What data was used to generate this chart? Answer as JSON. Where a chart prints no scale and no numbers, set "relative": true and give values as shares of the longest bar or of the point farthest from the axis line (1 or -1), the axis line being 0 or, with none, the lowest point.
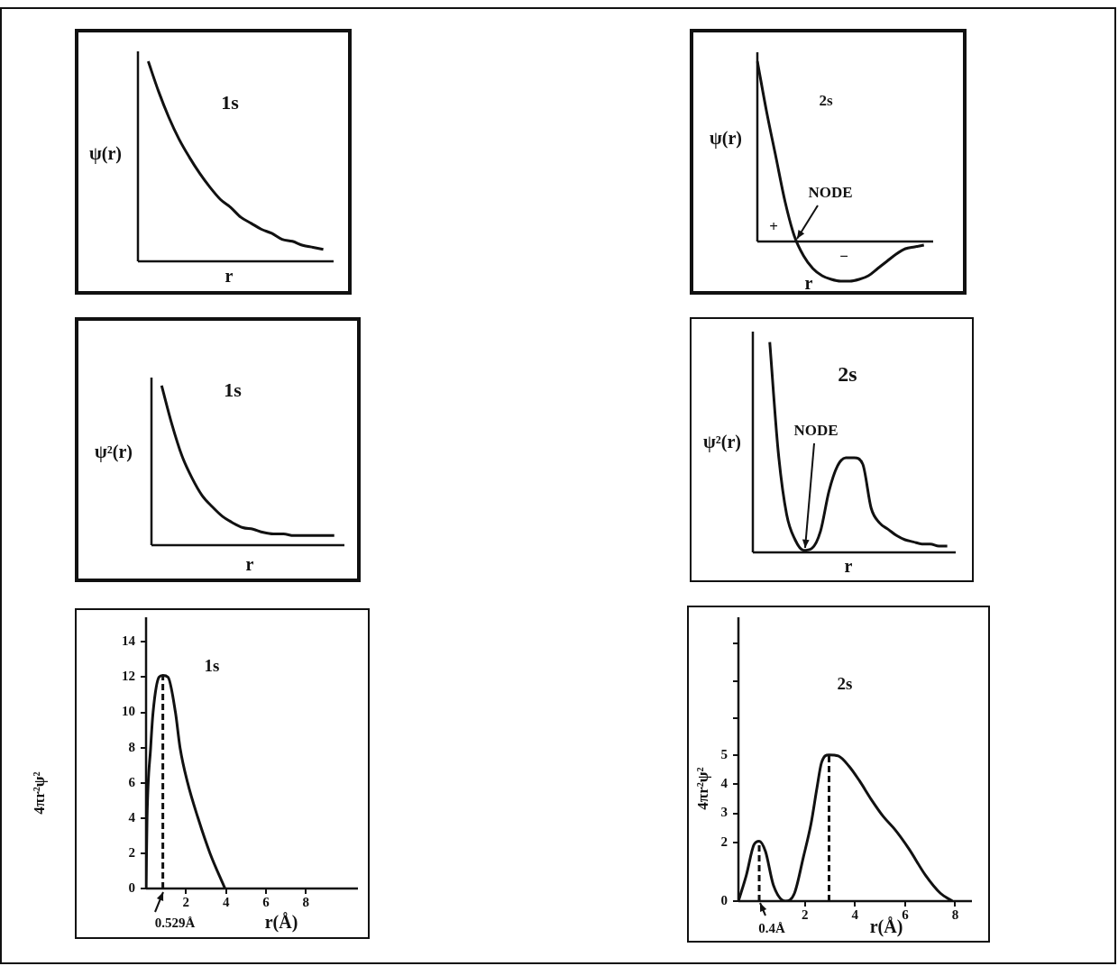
{
  "chart_data": [
    {
      "type": "line",
      "title": "1s",
      "xlabel": "r",
      "ylabel": "ψ(r)",
      "relative": true,
      "categories": [
        null,
        null,
        null,
        null,
        null,
        null,
        null,
        null,
        null,
        null,
        null,
        null,
        null,
        null,
        null,
        null,
        null,
        null,
        null,
        null
      ],
      "series": [
        {
          "color": "#111111",
          "values": [
            null,
            1.0,
            0.85,
            0.72,
            0.61,
            0.52,
            0.44,
            0.37,
            0.31,
            0.27,
            0.22,
            0.19,
            0.16,
            0.14,
            0.11,
            0.1,
            0.08,
            0.07,
            0.06,
            null
          ]
        }
      ]
    },
    {
      "type": "line",
      "title": "2s",
      "xlabel": "r",
      "ylabel": "ψ(r)",
      "relative": true,
      "annotations": [
        "NODE",
        "+",
        "−"
      ],
      "categories": [
        null,
        null,
        null,
        null,
        null,
        null,
        null,
        null,
        null,
        null,
        null,
        null,
        null,
        null,
        null,
        null,
        null,
        null,
        null,
        null
      ],
      "series": [
        {
          "color": "#111111",
          "values": [
            1.0,
            0.72,
            0.47,
            0.22,
            0.03,
            -0.08,
            -0.15,
            -0.19,
            -0.21,
            -0.22,
            -0.22,
            -0.21,
            -0.19,
            -0.15,
            -0.11,
            -0.07,
            -0.04,
            -0.03,
            -0.02,
            null
          ]
        }
      ]
    },
    {
      "type": "line",
      "title": "1s",
      "xlabel": "r",
      "ylabel": "ψ²(r)",
      "relative": true,
      "categories": [
        null,
        null,
        null,
        null,
        null,
        null,
        null,
        null,
        null,
        null,
        null,
        null,
        null,
        null,
        null,
        null,
        null,
        null,
        null,
        null
      ],
      "series": [
        {
          "color": "#111111",
          "values": [
            null,
            1.0,
            0.76,
            0.56,
            0.42,
            0.31,
            0.24,
            0.18,
            0.14,
            0.11,
            0.1,
            0.08,
            0.07,
            0.07,
            0.06,
            0.06,
            0.06,
            0.06,
            0.06,
            null
          ]
        }
      ]
    },
    {
      "type": "line",
      "title": "2s",
      "xlabel": "r",
      "ylabel": "ψ²(r)",
      "relative": true,
      "annotations": [
        "NODE"
      ],
      "categories": [
        null,
        null,
        null,
        null,
        null,
        null,
        null,
        null,
        null,
        null,
        null,
        null,
        null,
        null,
        null,
        null,
        null,
        null,
        null,
        null,
        null,
        null,
        null,
        null,
        null
      ],
      "series": [
        {
          "color": "#111111",
          "values": [
            null,
            null,
            1.0,
            0.48,
            0.18,
            0.06,
            0.01,
            0.02,
            0.1,
            0.29,
            0.41,
            0.45,
            0.45,
            0.42,
            0.21,
            0.14,
            0.11,
            0.08,
            0.06,
            0.05,
            0.04,
            0.04,
            0.03,
            0.03,
            null
          ]
        }
      ]
    },
    {
      "type": "line",
      "title": "1s",
      "xlabel": "r(Å)",
      "ylabel": "4πr²ψ²",
      "xlim": [
        0,
        10.6
      ],
      "ylim": [
        0,
        15.4
      ],
      "xticks": [
        2,
        4,
        6,
        8
      ],
      "yticks": [
        0,
        2,
        4,
        6,
        8,
        10,
        12,
        14
      ],
      "x": [
        0,
        0.05,
        0.23,
        0.35,
        0.65,
        0.84,
        1.1,
        1.47,
        1.7,
        2.08,
        2.6,
        3.2,
        3.95
      ],
      "series": [
        {
          "color": "#111111",
          "values": [
            0,
            4,
            8,
            10,
            12,
            12.1,
            12,
            10,
            8,
            6,
            4,
            2,
            0
          ]
        }
      ],
      "ref_lines": [
        {
          "axis": "x",
          "value": 0.84,
          "label": "0.529Å",
          "color": "#111111",
          "line_style": "dashed"
        }
      ]
    },
    {
      "type": "line",
      "title": "2s",
      "xlabel": "r(Å)",
      "ylabel": "4πr²ψ²",
      "xlim": [
        -0.66,
        8.67
      ],
      "ylim": [
        0,
        9.7
      ],
      "xticks": [
        2,
        4,
        6,
        8
      ],
      "yticks": [
        0,
        2,
        3,
        4,
        5,
        {
          "value": 6.25,
          "label": null
        },
        {
          "value": 7.5,
          "label": null
        },
        {
          "value": 8.8,
          "label": null
        }
      ],
      "x": [
        -0.66,
        -0.34,
        -0.04,
        0.17,
        0.42,
        0.74,
        1.22,
        1.58,
        1.94,
        2.24,
        2.48,
        2.66,
        2.96,
        3.33,
        3.75,
        4.17,
        4.65,
        5.13,
        5.61,
        6.15,
        6.81,
        7.41,
        7.89
      ],
      "series": [
        {
          "color": "#111111",
          "values": [
            0,
            0.9,
            1.93,
            2.05,
            1.7,
            0.54,
            0,
            0.27,
            1.52,
            2.64,
            3.88,
            4.73,
            5.0,
            4.96,
            4.62,
            4.12,
            3.47,
            2.89,
            2.43,
            1.79,
            0.89,
            0.27,
            0
          ]
        }
      ],
      "ref_lines": [
        {
          "axis": "x",
          "value": 0.17,
          "label": "0.4Å",
          "color": "#111111",
          "line_style": "dashed"
        },
        {
          "axis": "x",
          "value": 2.96,
          "color": "#111111",
          "line_style": "dashed"
        }
      ]
    }
  ]
}
